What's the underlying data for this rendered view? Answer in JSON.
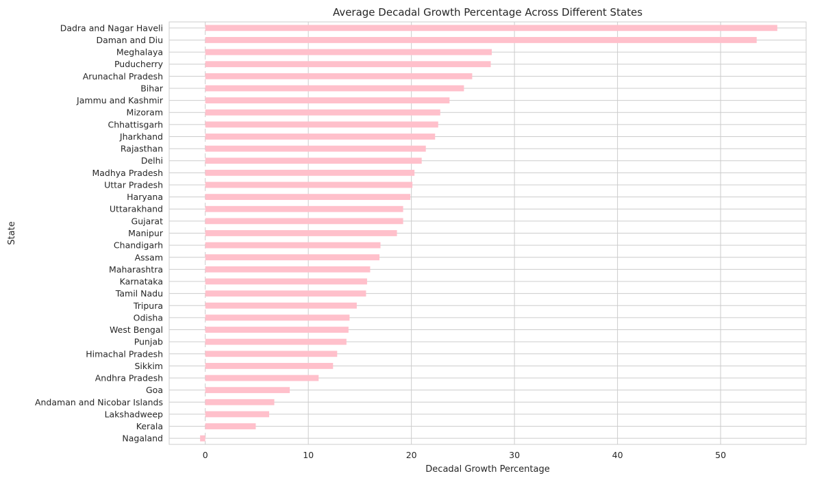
{
  "chart_data": {
    "type": "bar",
    "orientation": "horizontal",
    "title": "Average Decadal Growth Percentage Across Different States",
    "xlabel": "Decadal Growth Percentage",
    "ylabel": "State",
    "xlim": [
      -3.5,
      58.3
    ],
    "xticks": [
      0,
      10,
      20,
      30,
      40,
      50
    ],
    "grid": true,
    "bar_color": "#ffc0cb",
    "categories": [
      "Dadra and Nagar Haveli",
      "Daman and Diu",
      "Meghalaya",
      "Puducherry",
      "Arunachal Pradesh",
      "Bihar",
      "Jammu and Kashmir",
      "Mizoram",
      "Chhattisgarh",
      "Jharkhand",
      "Rajasthan",
      "Delhi",
      "Madhya Pradesh",
      "Uttar Pradesh",
      "Haryana",
      "Uttarakhand",
      "Gujarat",
      "Manipur",
      "Chandigarh",
      "Assam",
      "Maharashtra",
      "Karnataka",
      "Tamil Nadu",
      "Tripura",
      "Odisha",
      "West Bengal",
      "Punjab",
      "Himachal Pradesh",
      "Sikkim",
      "Andhra Pradesh",
      "Goa",
      "Andaman and Nicobar Islands",
      "Lakshadweep",
      "Kerala",
      "Nagaland"
    ],
    "values": [
      55.5,
      53.5,
      27.8,
      27.7,
      25.9,
      25.1,
      23.7,
      22.8,
      22.6,
      22.3,
      21.4,
      21.0,
      20.3,
      20.1,
      19.9,
      19.2,
      19.2,
      18.6,
      17.0,
      16.9,
      16.0,
      15.7,
      15.6,
      14.7,
      14.0,
      13.9,
      13.7,
      12.8,
      12.4,
      11.0,
      8.2,
      6.7,
      6.2,
      4.9,
      -0.5
    ]
  }
}
